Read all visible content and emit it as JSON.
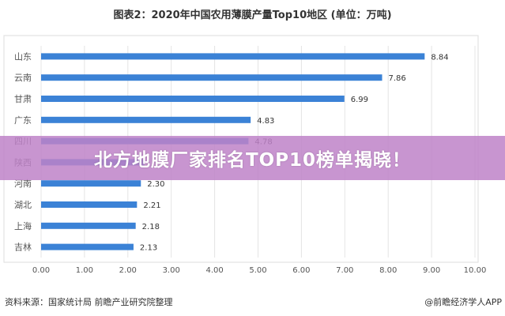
{
  "chart_data": {
    "type": "bar",
    "orientation": "horizontal",
    "title": "图表2：2020年中国农用薄膜产量Top10地区 (单位：万吨)",
    "categories": [
      "山东",
      "云南",
      "甘肃",
      "广东",
      "四川",
      "陕西",
      "河南",
      "湖北",
      "上海",
      "吉林"
    ],
    "values": [
      8.84,
      7.86,
      6.99,
      4.83,
      4.78,
      2.38,
      2.3,
      2.21,
      2.18,
      2.13
    ],
    "data_labels": [
      "8.84",
      "7.86",
      "6.99",
      "4.83",
      "4.78",
      "",
      "2.30",
      "2.21",
      "2.18",
      "2.13"
    ],
    "xlim": [
      0,
      10
    ],
    "xticks": [
      "0.00",
      "1.00",
      "2.00",
      "3.00",
      "4.00",
      "5.00",
      "6.00",
      "7.00",
      "8.00",
      "9.00",
      "10.00"
    ],
    "grid": true,
    "bar_color": "#3b82d6"
  },
  "banner": {
    "text": "北方地膜厂家排名TOP10榜单揭晓！",
    "color": "#be82c8"
  },
  "footer": {
    "source": "资料来源：国家统计局 前瞻产业研究院整理",
    "credit": "@前瞻经济学人APP"
  }
}
